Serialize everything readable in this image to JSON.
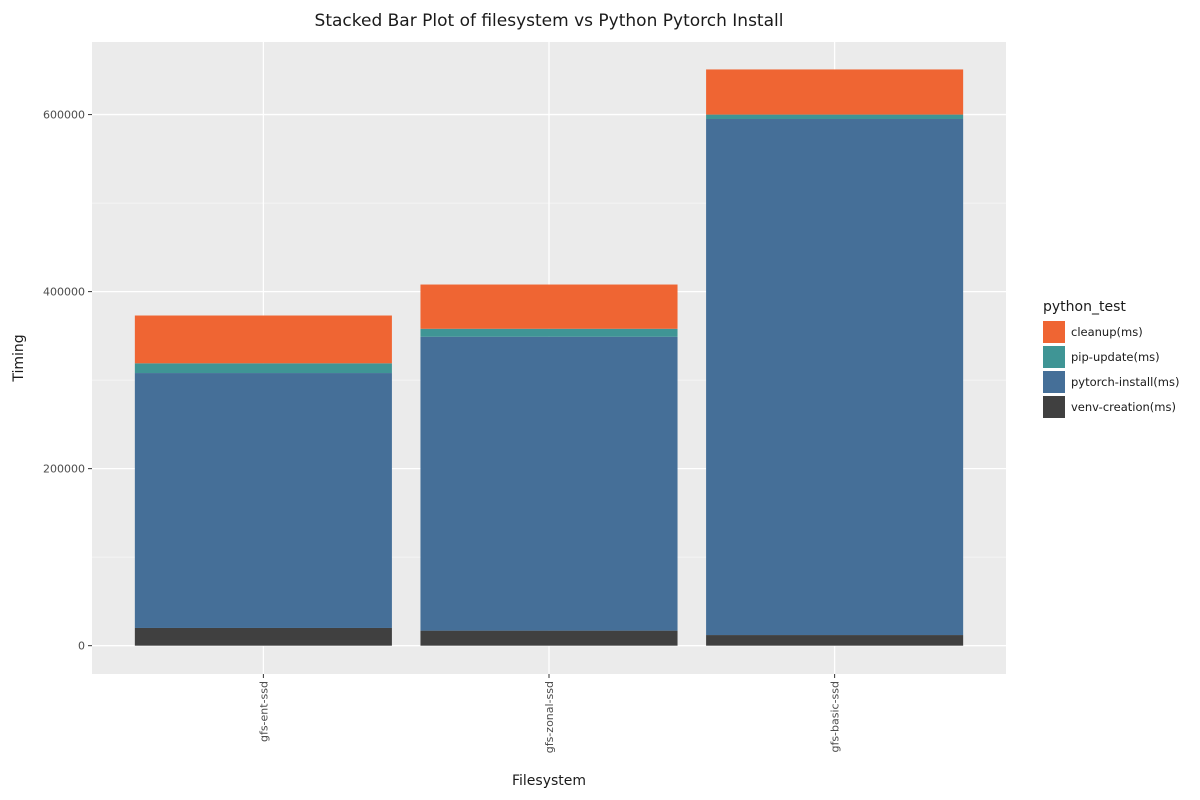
{
  "chart_data": {
    "type": "bar",
    "stacked": true,
    "title": "Stacked Bar Plot of filesystem vs Python Pytorch Install",
    "xlabel": "Filesystem",
    "ylabel": "Timing",
    "categories": [
      "gfs-ent-ssd",
      "gfs-zonal-ssd",
      "gfs-basic-ssd"
    ],
    "ylim": [
      -32000,
      682000
    ],
    "y_ticks": [
      0,
      200000,
      400000,
      600000
    ],
    "y_tick_labels": [
      "0",
      "200000",
      "400000",
      "600000"
    ],
    "grid": true,
    "legend": {
      "title": "python_test",
      "position": "right"
    },
    "series": [
      {
        "name": "venv-creation(ms)",
        "color": "#404040",
        "values": [
          20000,
          17000,
          12000
        ]
      },
      {
        "name": "pytorch-install(ms)",
        "color": "#456f98",
        "values": [
          288000,
          332000,
          583000
        ]
      },
      {
        "name": "pip-update(ms)",
        "color": "#3f9595",
        "values": [
          11000,
          9000,
          5000
        ]
      },
      {
        "name": "cleanup(ms)",
        "color": "#ef6533",
        "values": [
          54000,
          50000,
          51000
        ]
      }
    ],
    "legend_order": [
      "cleanup(ms)",
      "pip-update(ms)",
      "pytorch-install(ms)",
      "venv-creation(ms)"
    ]
  }
}
